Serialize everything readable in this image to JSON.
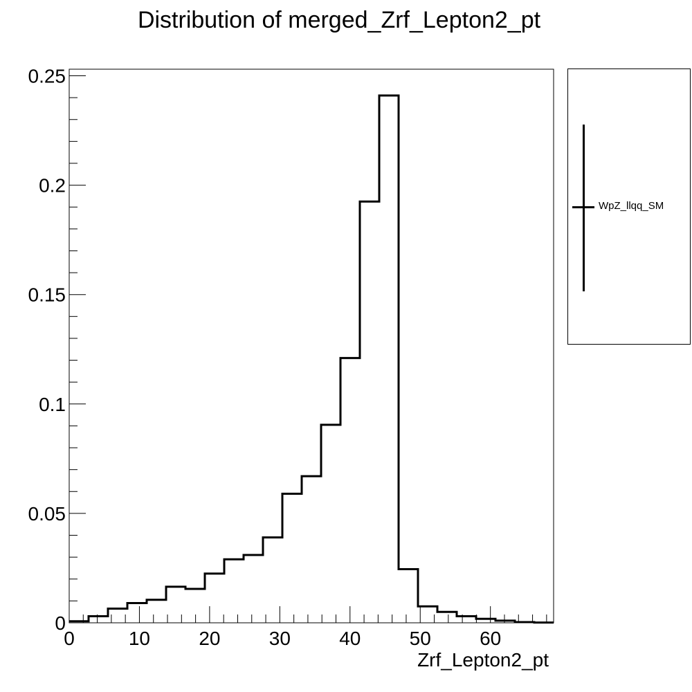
{
  "chart_data": {
    "type": "bar",
    "title": "Distribution of merged_Zrf_Lepton2_pt",
    "xlabel": "Zrf_Lepton2_pt",
    "ylabel": "",
    "xlim": [
      0,
      69
    ],
    "ylim": [
      0,
      0.253
    ],
    "x_ticks": [
      0,
      10,
      20,
      30,
      40,
      50,
      60
    ],
    "y_ticks": [
      0,
      0.05,
      0.1,
      0.15,
      0.2,
      0.25
    ],
    "x_tick_labels": [
      "0",
      "10",
      "20",
      "30",
      "40",
      "50",
      "60"
    ],
    "y_tick_labels": [
      "0",
      "0.05",
      "0.1",
      "0.15",
      "0.2",
      "0.25"
    ],
    "bin_edges": [
      0,
      2.76,
      5.52,
      8.28,
      11.04,
      13.8,
      16.56,
      19.32,
      22.08,
      24.84,
      27.6,
      30.36,
      33.12,
      35.88,
      38.64,
      41.4,
      44.16,
      46.92,
      49.68,
      52.44,
      55.2,
      57.96,
      60.72,
      63.48,
      66.24,
      69
    ],
    "series": [
      {
        "name": "WpZ_llqq_SM",
        "color": "#000000",
        "values": [
          0.0007,
          0.003,
          0.0065,
          0.009,
          0.0105,
          0.0165,
          0.0155,
          0.0225,
          0.029,
          0.031,
          0.039,
          0.059,
          0.067,
          0.0905,
          0.121,
          0.1925,
          0.241,
          0.0245,
          0.0075,
          0.005,
          0.003,
          0.0018,
          0.001,
          0.0003,
          0.0001
        ]
      }
    ],
    "legend_position": "right-top",
    "grid": false
  },
  "legend": {
    "label": "WpZ_llqq_SM"
  }
}
